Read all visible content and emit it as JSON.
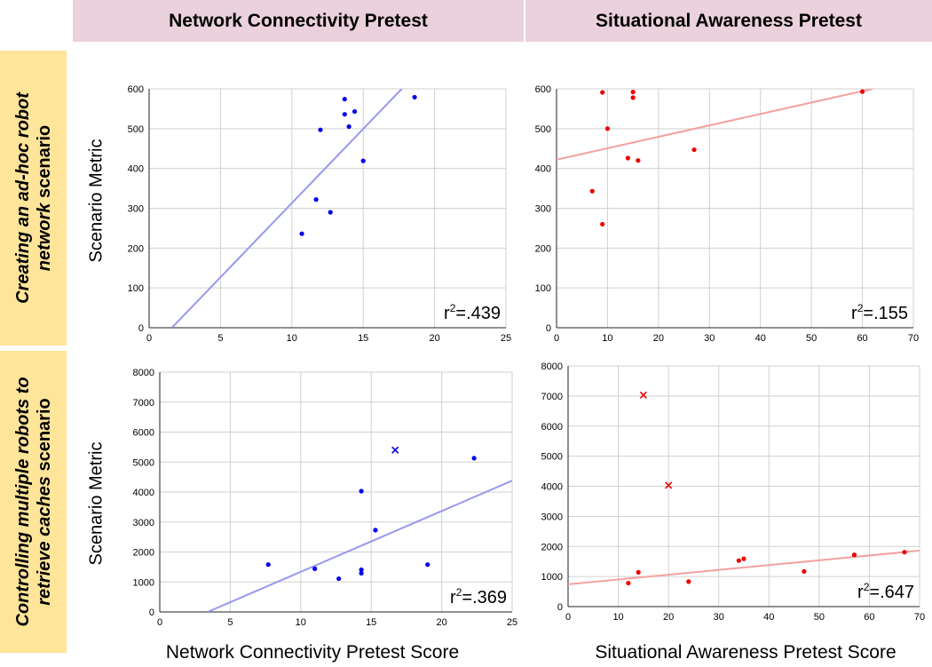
{
  "headers": {
    "col_left": "Network Connectivity Pretest",
    "col_right": "Situational Awareness Pretest",
    "row_top": [
      "Creating an ad-hoc robot",
      "network",
      " scenario"
    ],
    "row_bottom": [
      "Controlling multiple robots to",
      "retrieve caches",
      " scenario"
    ]
  },
  "labels": {
    "y_top": "Scenario Metric",
    "y_bottom": "Scenario Metric",
    "x_left": "Network Connectivity Pretest Score",
    "x_right": "Situational Awareness Pretest Score"
  },
  "chart_data": [
    {
      "id": "top-left",
      "type": "scatter",
      "xlim": [
        0,
        25
      ],
      "ylim": [
        0,
        600
      ],
      "xticks": [
        0,
        5,
        10,
        15,
        20,
        25
      ],
      "yticks": [
        0,
        100,
        200,
        300,
        400,
        500,
        600
      ],
      "color": "#0000ee",
      "trend_color": "#9999ee",
      "points": [
        [
          10.7,
          236
        ],
        [
          11.7,
          322
        ],
        [
          12,
          497
        ],
        [
          12.7,
          290
        ],
        [
          13.7,
          574
        ],
        [
          13.7,
          536
        ],
        [
          14,
          505
        ],
        [
          14.4,
          543
        ],
        [
          15,
          419
        ],
        [
          18.6,
          579
        ]
      ],
      "outliers": [],
      "trendline": [
        [
          1.6,
          0
        ],
        [
          17.7,
          600
        ]
      ],
      "r2_prefix": "r",
      "r2_sup": "2",
      "r2_value": "=.439"
    },
    {
      "id": "top-right",
      "type": "scatter",
      "xlim": [
        0,
        70
      ],
      "ylim": [
        0,
        600
      ],
      "xticks": [
        0,
        10,
        20,
        30,
        40,
        50,
        60,
        70
      ],
      "yticks": [
        0,
        100,
        200,
        300,
        400,
        500,
        600
      ],
      "color": "#ee0000",
      "trend_color": "#f4a0a0",
      "points": [
        [
          7,
          343
        ],
        [
          9,
          260
        ],
        [
          9,
          591
        ],
        [
          10,
          500
        ],
        [
          14,
          426
        ],
        [
          15,
          578
        ],
        [
          15,
          592
        ],
        [
          16,
          420
        ],
        [
          27,
          447
        ],
        [
          60,
          593
        ]
      ],
      "outliers": [],
      "trendline": [
        [
          0,
          422
        ],
        [
          62,
          600
        ]
      ],
      "r2_prefix": "r",
      "r2_sup": "2",
      "r2_value": "=.155"
    },
    {
      "id": "bottom-left",
      "type": "scatter",
      "xlim": [
        0,
        25
      ],
      "ylim": [
        0,
        8000
      ],
      "xticks": [
        0,
        5,
        10,
        15,
        20,
        25
      ],
      "yticks": [
        0,
        1000,
        2000,
        3000,
        4000,
        5000,
        6000,
        7000,
        8000
      ],
      "color": "#0000ee",
      "trend_color": "#9999ee",
      "points": [
        [
          7.7,
          1580
        ],
        [
          11,
          1440
        ],
        [
          12.7,
          1110
        ],
        [
          14.3,
          1410
        ],
        [
          14.3,
          1290
        ],
        [
          14.3,
          4030
        ],
        [
          15.3,
          2730
        ],
        [
          19,
          1580
        ],
        [
          22.3,
          5130
        ]
      ],
      "outliers": [
        [
          16.7,
          5400
        ]
      ],
      "trendline": [
        [
          3.4,
          0
        ],
        [
          25,
          4380
        ]
      ],
      "r2_prefix": "r",
      "r2_sup": "2",
      "r2_value": "=.369"
    },
    {
      "id": "bottom-right",
      "type": "scatter",
      "xlim": [
        0,
        70
      ],
      "ylim": [
        0,
        8000
      ],
      "xticks": [
        0,
        10,
        20,
        30,
        40,
        50,
        60,
        70
      ],
      "yticks": [
        0,
        1000,
        2000,
        3000,
        4000,
        5000,
        6000,
        7000,
        8000
      ],
      "color": "#ee0000",
      "trend_color": "#f4a0a0",
      "points": [
        [
          12,
          780
        ],
        [
          14,
          1140
        ],
        [
          24,
          830
        ],
        [
          34,
          1530
        ],
        [
          35,
          1590
        ],
        [
          47,
          1170
        ],
        [
          57,
          1720
        ],
        [
          67,
          1810
        ]
      ],
      "outliers": [
        [
          15,
          7030
        ],
        [
          20,
          4030
        ]
      ],
      "trendline": [
        [
          0,
          740
        ],
        [
          70,
          1860
        ]
      ],
      "r2_prefix": "r",
      "r2_sup": "2",
      "r2_value": "=.647"
    }
  ]
}
